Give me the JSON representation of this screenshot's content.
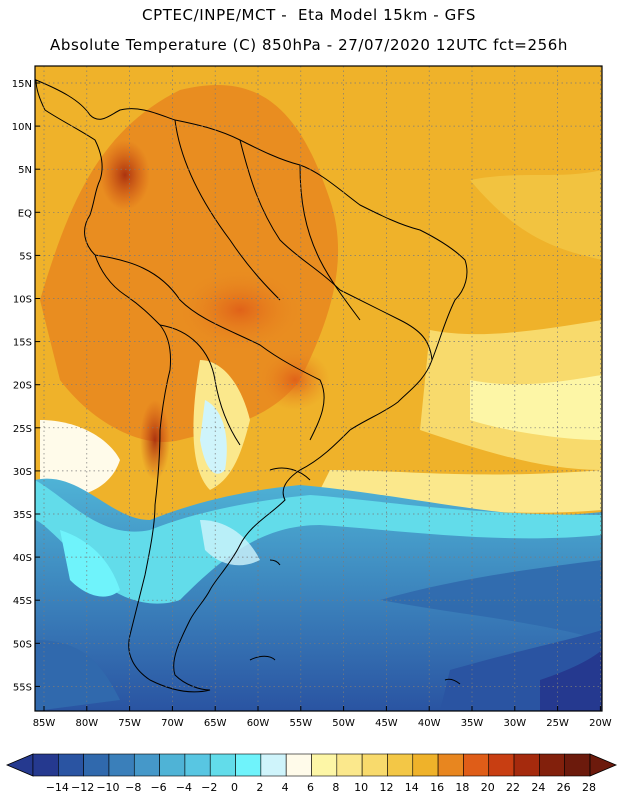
{
  "header": {
    "line1": "CPTEC/INPE/MCT -  Eta Model 15km - GFS",
    "line2": "Absolute Temperature (C) 850hPa - 27/07/2020 12UTC fct=256h"
  },
  "map": {
    "lat_labels": [
      "15N",
      "10N",
      "5N",
      "EQ",
      "5S",
      "10S",
      "15S",
      "20S",
      "25S",
      "30S",
      "35S",
      "40S",
      "45S",
      "50S",
      "55S"
    ],
    "lon_labels": [
      "85W",
      "80W",
      "75W",
      "70W",
      "65W",
      "60W",
      "55W",
      "50W",
      "45W",
      "40W",
      "35W",
      "30W",
      "25W",
      "20W"
    ]
  },
  "legend": {
    "tick_labels": [
      "-14",
      "-12",
      "-10",
      "-8",
      "-6",
      "-4",
      "-2",
      "0",
      "2",
      "4",
      "6",
      "8",
      "10",
      "12",
      "14",
      "16",
      "18",
      "20",
      "22",
      "24",
      "26",
      "28"
    ],
    "colors": [
      "#25398f",
      "#2a54a2",
      "#3069ad",
      "#3a7fba",
      "#4598c9",
      "#4fb3d6",
      "#58c6e2",
      "#62dcea",
      "#6ff3fb",
      "#cff4fb",
      "#fffbea",
      "#fdf6a6",
      "#fbe88c",
      "#f8da6c",
      "#f3c746",
      "#efb22a",
      "#e8861f",
      "#df5d18",
      "#c83e12",
      "#a52a0d",
      "#82200c",
      "#6c1a0c"
    ]
  }
}
